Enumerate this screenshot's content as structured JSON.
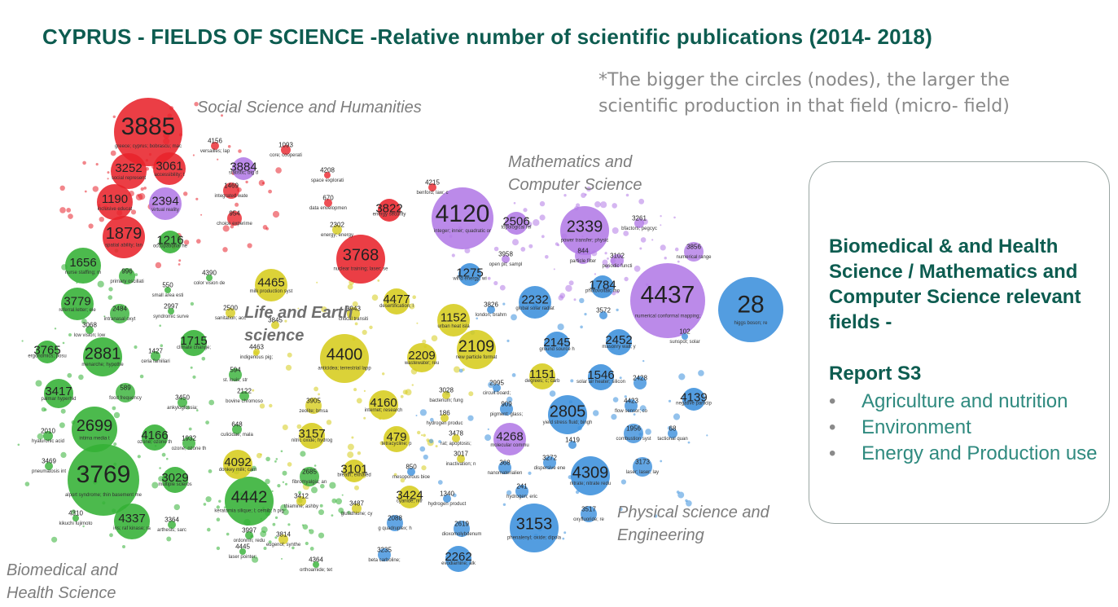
{
  "title": "CYPRUS - FIELDS OF SCIENCE -Relative number of scientific publications (2014- 2018)",
  "note": "*The bigger the circles (nodes), the larger the scientific production in that field (micro- field)",
  "clusters": {
    "social": "Social Science and Humanities",
    "math": "Mathematics and Computer Science",
    "life": "Life and Earth science",
    "physical": "Physical science and Engineering",
    "biomedical": "Biomedical and Health Science"
  },
  "panel": {
    "heading": "Biomedical & and Health Science / Mathematics and Computer Science relevant fields -",
    "report": "Report S3",
    "items": [
      "Agriculture and nutrition",
      "Environment",
      "Energy and Production use"
    ]
  },
  "colors": {
    "title": "#0d5c50",
    "panel_text": "#0d5c50",
    "list_text": "#2f8a7f",
    "red": "#e8232b",
    "green": "#33b034",
    "yellow": "#d6cc1c",
    "blue": "#3b8fdc",
    "purple": "#b27ae6"
  },
  "nodes": [
    {
      "id": "3885",
      "desc": "greece; cyprus; bobrascu; mac",
      "color": "red"
    },
    {
      "id": "3252",
      "desc": "social represent",
      "color": "red"
    },
    {
      "id": "3061",
      "desc": "accessibility; t",
      "color": "red"
    },
    {
      "id": "1190",
      "desc": "inclusive educat",
      "color": "red"
    },
    {
      "id": "2394",
      "desc": "virtual reality",
      "color": "purple"
    },
    {
      "id": "1879",
      "desc": "spatial ability; lan",
      "color": "red"
    },
    {
      "id": "1216",
      "desc": "occupational he",
      "color": "green"
    },
    {
      "id": "3884",
      "desc": "statistic; big d",
      "color": "purple"
    },
    {
      "id": "1469",
      "desc": "integrated wate",
      "color": "red"
    },
    {
      "id": "954",
      "desc": "choice experime",
      "color": "red"
    },
    {
      "id": "1093",
      "desc": "core; cooperati",
      "color": "red"
    },
    {
      "id": "4156",
      "desc": "versailles; lap",
      "color": "red"
    },
    {
      "id": "4208",
      "desc": "space explorati",
      "color": "red"
    },
    {
      "id": "670",
      "desc": "data envelopmen",
      "color": "red"
    },
    {
      "id": "2302",
      "desc": "energy; energy",
      "color": "yellow"
    },
    {
      "id": "3822",
      "desc": "energy security",
      "color": "red"
    },
    {
      "id": "4215",
      "desc": "benford; law; c",
      "color": "red"
    },
    {
      "id": "3768",
      "desc": "nuclear training; laser; se",
      "color": "red"
    },
    {
      "id": "4120",
      "desc": "integer; inner; quadratic or",
      "color": "purple"
    },
    {
      "id": "2506",
      "desc": "topological rel",
      "color": "purple"
    },
    {
      "id": "2339",
      "desc": "power transfer; physic",
      "color": "purple"
    },
    {
      "id": "3261",
      "desc": "bfactors; pegcyc",
      "color": "purple"
    },
    {
      "id": "3958",
      "desc": "open pit; sampl",
      "color": "purple"
    },
    {
      "id": "844",
      "desc": "particle filter",
      "color": "purple"
    },
    {
      "id": "3102",
      "desc": "periodic functi",
      "color": "purple"
    },
    {
      "id": "3856",
      "desc": "numerical range",
      "color": "purple"
    },
    {
      "id": "1275",
      "desc": "wind energy; wi",
      "color": "blue"
    },
    {
      "id": "1784",
      "desc": "photovoltaic mo",
      "color": "blue"
    },
    {
      "id": "4437",
      "desc": "numerical conformal mapping;",
      "color": "purple"
    },
    {
      "id": "28",
      "desc": "higgs boson; re",
      "color": "blue"
    },
    {
      "id": "1656",
      "desc": "nurse staffing; m",
      "color": "green"
    },
    {
      "id": "996",
      "desc": "primary oscillati",
      "color": "green"
    },
    {
      "id": "4390",
      "desc": "color vision de",
      "color": "green"
    },
    {
      "id": "550",
      "desc": "small area esti",
      "color": "green"
    },
    {
      "id": "4465",
      "desc": "milk production syst",
      "color": "yellow"
    },
    {
      "id": "4477",
      "desc": "desertification; l",
      "color": "yellow"
    },
    {
      "id": "3779",
      "desc": "referral letter; ele",
      "color": "green"
    },
    {
      "id": "2484",
      "desc": "intranasal oxyt",
      "color": "green"
    },
    {
      "id": "2997",
      "desc": "syndromic surve",
      "color": "green"
    },
    {
      "id": "2500",
      "desc": "sanitation; acc",
      "color": "yellow"
    },
    {
      "id": "3845",
      "desc": "",
      "color": "yellow"
    },
    {
      "id": "3943",
      "desc": "critical transiti",
      "color": "yellow"
    },
    {
      "id": "1152",
      "desc": "urban heat isla",
      "color": "yellow"
    },
    {
      "id": "3826",
      "desc": "london; brahm",
      "color": "blue"
    },
    {
      "id": "2232",
      "desc": "global solar radiat",
      "color": "blue"
    },
    {
      "id": "3572",
      "desc": "",
      "color": "blue"
    },
    {
      "id": "3068",
      "desc": "low vision; low",
      "color": "green"
    },
    {
      "id": "1715",
      "desc": "climate change;",
      "color": "green"
    },
    {
      "id": "4463",
      "desc": "indigenous pig;",
      "color": "yellow"
    },
    {
      "id": "4400",
      "desc": "anticidea; terrestrial lapp",
      "color": "yellow"
    },
    {
      "id": "2209",
      "desc": "wastewater; reu",
      "color": "yellow"
    },
    {
      "id": "2109",
      "desc": "new particle format",
      "color": "yellow"
    },
    {
      "id": "2145",
      "desc": "ground source h",
      "color": "blue"
    },
    {
      "id": "2452",
      "desc": "masonry wall; y",
      "color": "blue"
    },
    {
      "id": "102",
      "desc": "sunspot; solar",
      "color": "blue"
    },
    {
      "id": "2895",
      "desc": "ethernet passiv",
      "color": "blue"
    },
    {
      "id": "3765",
      "desc": "ergonomics; posu",
      "color": "green"
    },
    {
      "id": "2881",
      "desc": "menarche; hypothe",
      "color": "green"
    },
    {
      "id": "1427",
      "desc": "ceria familiari",
      "color": "green"
    },
    {
      "id": "594",
      "desc": "st. louis; str",
      "color": "green"
    },
    {
      "id": "3417",
      "desc": "palmar hyperhid",
      "color": "green"
    },
    {
      "id": "589",
      "desc": "food frequency",
      "color": "green"
    },
    {
      "id": "2122",
      "desc": "bovine chromoso",
      "color": "green"
    },
    {
      "id": "3450",
      "desc": "ankyloglossia;",
      "color": "green"
    },
    {
      "id": "3905",
      "desc": "zeolite; bmsa",
      "color": "yellow"
    },
    {
      "id": "4160",
      "desc": "internet; research",
      "color": "yellow"
    },
    {
      "id": "3028",
      "desc": "bacterium; fung",
      "color": "yellow"
    },
    {
      "id": "186",
      "desc": "hydrogen produc",
      "color": "yellow"
    },
    {
      "id": "2995",
      "desc": "circuit board;",
      "color": "blue"
    },
    {
      "id": "909",
      "desc": "pigment; glass;",
      "color": "blue"
    },
    {
      "id": "1151",
      "desc": "degrees; c; carb",
      "color": "yellow"
    },
    {
      "id": "1546",
      "desc": "solar air heater; silicon",
      "color": "blue"
    },
    {
      "id": "2428",
      "desc": "",
      "color": "blue"
    },
    {
      "id": "4139",
      "desc": "negative particip",
      "color": "blue"
    },
    {
      "id": "2805",
      "desc": "yield stress fluid; bingh",
      "color": "blue"
    },
    {
      "id": "4423",
      "desc": "flow sensor; co",
      "color": "blue"
    },
    {
      "id": "1956",
      "desc": "combustion syst",
      "color": "blue"
    },
    {
      "id": "68",
      "desc": "tactional quan",
      "color": "blue"
    },
    {
      "id": "2699",
      "desc": "intima media t",
      "color": "green"
    },
    {
      "id": "2010",
      "desc": "hyaluronic acid",
      "color": "green"
    },
    {
      "id": "4166",
      "desc": "ozone; ozone th",
      "color": "green"
    },
    {
      "id": "1932",
      "desc": "ozone; ozone th",
      "color": "green"
    },
    {
      "id": "648",
      "desc": "culicidae; mala",
      "color": "green"
    },
    {
      "id": "3157",
      "desc": "nitric oxide; hydrog",
      "color": "yellow"
    },
    {
      "id": "479",
      "desc": "tetracycline; p",
      "color": "yellow"
    },
    {
      "id": "3478",
      "desc": "rat; apoptosis;",
      "color": "yellow"
    },
    {
      "id": "4268",
      "desc": "molecular commu",
      "color": "purple"
    },
    {
      "id": "1419",
      "desc": "",
      "color": "blue"
    },
    {
      "id": "3017",
      "desc": "inactivation; n",
      "color": "yellow"
    },
    {
      "id": "368",
      "desc": "nanomaterialien",
      "color": "blue"
    },
    {
      "id": "3272",
      "desc": "dispersive ene",
      "color": "blue"
    },
    {
      "id": "4309",
      "desc": "nitrate; nitrate redu",
      "color": "blue"
    },
    {
      "id": "3173",
      "desc": "laser; laser; lay",
      "color": "blue"
    },
    {
      "id": "3769",
      "desc": "alport syndrome; thin basement me",
      "color": "green"
    },
    {
      "id": "3029",
      "desc": "multiple scleros",
      "color": "green"
    },
    {
      "id": "4092",
      "desc": "donkey milk; cam",
      "color": "yellow"
    },
    {
      "id": "2685",
      "desc": "fibromyalgia; an",
      "color": "green"
    },
    {
      "id": "3101",
      "desc": "breath; exhaled",
      "color": "yellow"
    },
    {
      "id": "850",
      "desc": "mesoporous bioe",
      "color": "blue"
    },
    {
      "id": "241",
      "desc": "hydrogen; eric",
      "color": "blue"
    },
    {
      "id": "3424",
      "desc": "cyanide; nitr",
      "color": "yellow"
    },
    {
      "id": "1340",
      "desc": "hydrogen product",
      "color": "blue"
    },
    {
      "id": "4442",
      "desc": "keratomia silique; l; cemib; h pig",
      "color": "green"
    },
    {
      "id": "3412",
      "desc": "thiamine; ashby",
      "color": "yellow"
    },
    {
      "id": "3487",
      "desc": "glutathione; cy",
      "color": "yellow"
    },
    {
      "id": "2088",
      "desc": "g quadruplex; h",
      "color": "blue"
    },
    {
      "id": "3517",
      "desc": "oxyfluoride; re",
      "color": "blue"
    },
    {
      "id": "4337",
      "desc": "iris; raf kinase; ra",
      "color": "green"
    },
    {
      "id": "4310",
      "desc": "kikuchi fujimoto",
      "color": "green"
    },
    {
      "id": "3364",
      "desc": "arthesis; sarc",
      "color": "green"
    },
    {
      "id": "3997",
      "desc": "ordonnin; redu",
      "color": "green"
    },
    {
      "id": "3814",
      "desc": "eugenol; synthe",
      "color": "yellow"
    },
    {
      "id": "2619",
      "desc": "dioxomolybdenum",
      "color": "blue"
    },
    {
      "id": "3153",
      "desc": "phenalenyl; oxide; dipola",
      "color": "blue"
    },
    {
      "id": "4445",
      "desc": "laser pointer;",
      "color": "green"
    },
    {
      "id": "3235",
      "desc": "beta carboline;",
      "color": "blue"
    },
    {
      "id": "4364",
      "desc": "orthoamide; tet",
      "color": "green"
    },
    {
      "id": "2262",
      "desc": "evodiamine; alk",
      "color": "blue"
    },
    {
      "id": "3469",
      "desc": "pneumatosis int",
      "color": "green"
    }
  ]
}
